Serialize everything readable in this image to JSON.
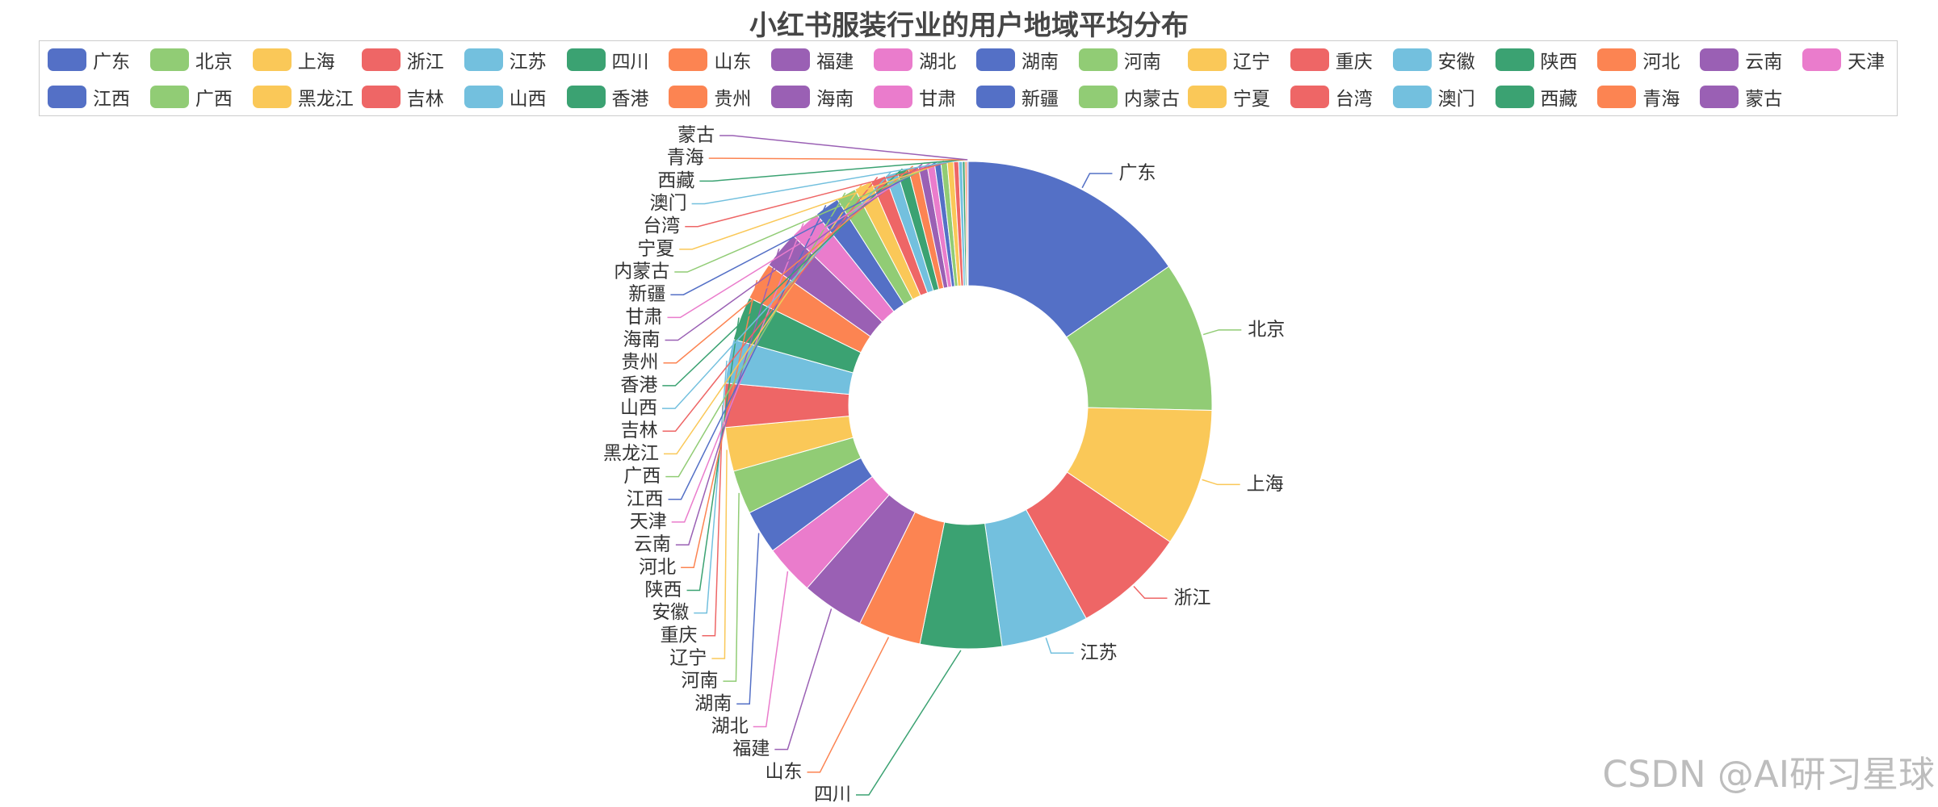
{
  "chart_data": {
    "type": "pie",
    "title": "小红书服装行业的用户地域平均分布",
    "categories": [
      "广东",
      "北京",
      "上海",
      "浙江",
      "江苏",
      "四川",
      "山东",
      "福建",
      "湖北",
      "湖南",
      "河南",
      "辽宁",
      "重庆",
      "安徽",
      "陕西",
      "河北",
      "云南",
      "天津",
      "江西",
      "广西",
      "黑龙江",
      "吉林",
      "山西",
      "香港",
      "贵州",
      "海南",
      "甘肃",
      "新疆",
      "内蒙古",
      "宁夏",
      "台湾",
      "澳门",
      "西藏",
      "青海",
      "蒙古"
    ],
    "values": [
      18.5,
      12.0,
      11.0,
      9.0,
      7.0,
      6.5,
      5.0,
      5.0,
      4.0,
      3.5,
      3.5,
      3.5,
      3.5,
      3.5,
      3.5,
      3.0,
      3.0,
      2.5,
      2.0,
      1.6,
      1.4,
      1.2,
      1.0,
      0.9,
      0.8,
      0.7,
      0.6,
      0.5,
      0.5,
      0.5,
      0.4,
      0.3,
      0.2,
      0.15,
      0.1
    ],
    "colors": [
      "#5470c6",
      "#91cc75",
      "#fac858",
      "#ee6666",
      "#73c0de",
      "#3ba272",
      "#fc8452",
      "#9a60b4",
      "#ea7ccc"
    ],
    "legend_position": "top"
  },
  "watermark": "CSDN @AI研习星球"
}
